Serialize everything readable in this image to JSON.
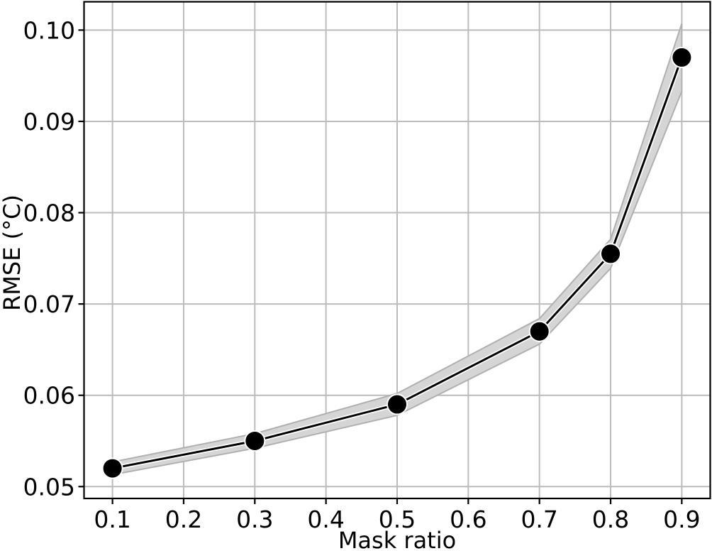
{
  "chart_data": {
    "type": "line",
    "title": "",
    "xlabel": "Mask ratio",
    "ylabel": "RMSE (°C)",
    "x": [
      0.1,
      0.3,
      0.5,
      0.7,
      0.8,
      0.9
    ],
    "y": [
      0.052,
      0.055,
      0.059,
      0.067,
      0.0755,
      0.097
    ],
    "band_upper": [
      0.0527,
      0.0558,
      0.0602,
      0.0684,
      0.0771,
      0.1007
    ],
    "band_lower": [
      0.0513,
      0.0542,
      0.0578,
      0.0656,
      0.0739,
      0.0933
    ],
    "xticks": [
      0.1,
      0.2,
      0.3,
      0.4,
      0.5,
      0.6,
      0.7,
      0.8,
      0.9
    ],
    "xtick_labels": [
      "0.1",
      "0.2",
      "0.3",
      "0.4",
      "0.5",
      "0.6",
      "0.7",
      "0.8",
      "0.9"
    ],
    "yticks": [
      0.05,
      0.06,
      0.07,
      0.08,
      0.09,
      0.1
    ],
    "ytick_labels": [
      "0.05",
      "0.06",
      "0.07",
      "0.08",
      "0.09",
      "0.10"
    ],
    "xlim": [
      0.06,
      0.94
    ],
    "ylim": [
      0.0487,
      0.1031
    ],
    "grid": true,
    "legend_position": "none",
    "marker": "circle",
    "colors": {
      "line": "#000000",
      "line_halo": "#ffffff",
      "marker_fill": "#000000",
      "marker_edge": "#ffffff",
      "band_fill": "#d5d5d5",
      "band_edge": "#b0b0b0",
      "grid": "#bcbcbc",
      "spine": "#000000",
      "background": "#ffffff"
    }
  }
}
